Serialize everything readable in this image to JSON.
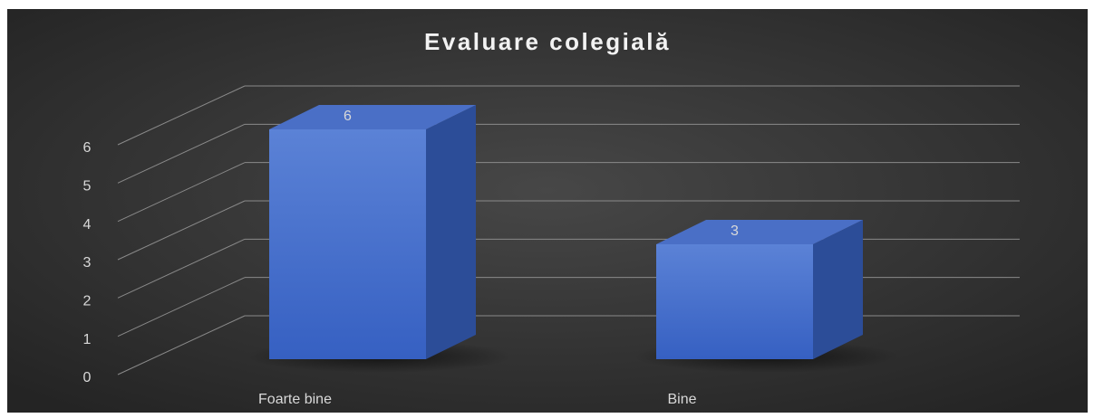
{
  "chart_data": {
    "type": "bar3d",
    "title": "Evaluare colegială",
    "categories": [
      "Foarte bine",
      "Bine"
    ],
    "values": [
      6,
      3
    ],
    "color": "#4472c4",
    "ylim": [
      0,
      6
    ],
    "yticks": [
      0,
      1,
      2,
      3,
      4,
      5,
      6
    ],
    "grid": true
  }
}
